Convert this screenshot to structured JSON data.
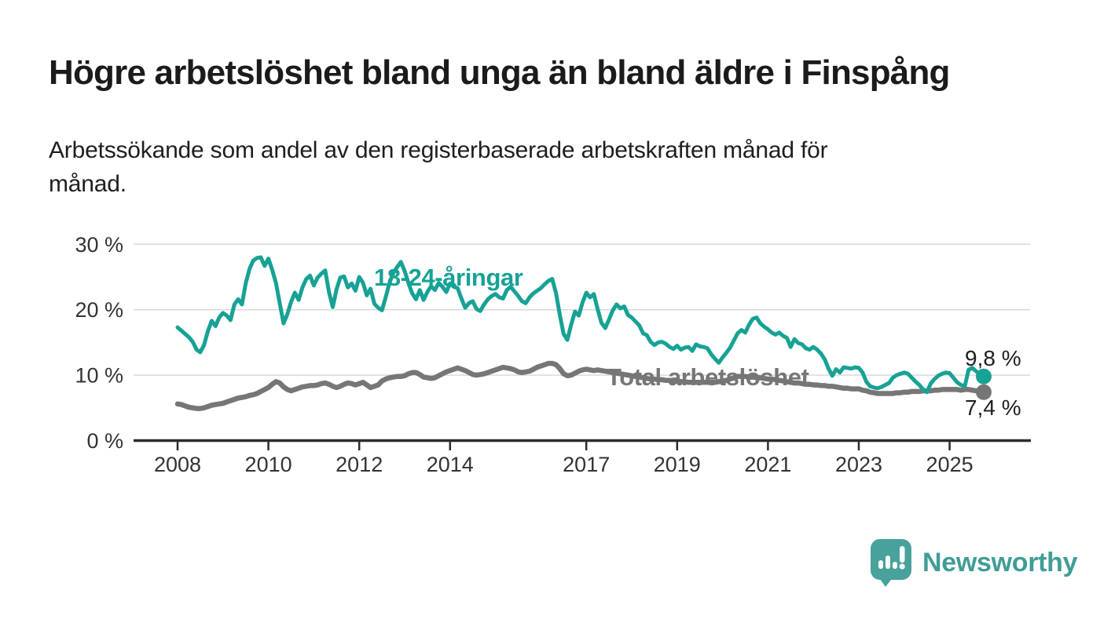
{
  "page": {
    "title": "Högre arbetslöshet bland unga än bland äldre i Finspång",
    "subtitle_lines": [
      "Arbetssökande som andel av den registerbaserade arbetskraften månad för",
      "månad."
    ]
  },
  "branding": {
    "name": "Newsworthy",
    "bubble_color": "#49a19b",
    "text_color": "#3f9d96",
    "icon": "bar-chart-speech-bubble"
  },
  "chart_data": {
    "type": "line",
    "title": "Högre arbetslöshet bland unga än bland äldre i Finspång",
    "subtitle": "Arbetssökande som andel av den registerbaserade arbetskraften månad för månad.",
    "x_unit": "month",
    "x_start": "2008-01",
    "x_end": "2025-10",
    "ylim": [
      0,
      32
    ],
    "grid": "horizontal",
    "legend_position": "inline-labels",
    "x_ticks": [
      2008,
      2010,
      2012,
      2014,
      2017,
      2019,
      2021,
      2023,
      2025
    ],
    "y_ticks": [
      {
        "value": 0,
        "label": "0 %"
      },
      {
        "value": 10,
        "label": "10 %"
      },
      {
        "value": 20,
        "label": "20 %"
      },
      {
        "value": 30,
        "label": "30 %"
      }
    ],
    "colors": {
      "grid": "#d9d9d9",
      "axis": "#2d2d2d",
      "tick_text": "#333333"
    },
    "series": [
      {
        "name": "18-24-åringar",
        "color": "#17a295",
        "end_label": "9,8 %",
        "end_value": 9.8,
        "values": [
          17.3,
          16.8,
          16.3,
          15.8,
          15.1,
          13.9,
          13.5,
          14.6,
          16.7,
          18.3,
          17.5,
          18.8,
          19.5,
          19.1,
          18.4,
          20.8,
          21.6,
          20.8,
          24.0,
          26.2,
          27.5,
          27.9,
          28.0,
          26.7,
          27.8,
          26.1,
          24.1,
          21.0,
          17.9,
          19.3,
          21.2,
          22.6,
          21.5,
          23.4,
          24.7,
          25.2,
          23.7,
          24.9,
          25.5,
          26.0,
          22.7,
          20.4,
          23.1,
          24.9,
          25.1,
          23.4,
          24.0,
          22.9,
          25.0,
          24.1,
          22.2,
          23.2,
          20.9,
          20.3,
          19.9,
          21.9,
          24.1,
          25.6,
          26.5,
          27.3,
          25.9,
          24.1,
          22.5,
          21.6,
          23.0,
          21.5,
          22.7,
          23.6,
          23.0,
          24.1,
          23.5,
          22.7,
          24.0,
          23.5,
          23.3,
          21.7,
          20.3,
          21.0,
          21.3,
          20.1,
          19.8,
          20.8,
          21.6,
          22.1,
          22.4,
          21.9,
          21.7,
          23.0,
          23.5,
          22.8,
          22.1,
          21.3,
          21.0,
          21.9,
          22.5,
          22.9,
          23.3,
          23.9,
          24.4,
          24.7,
          22.5,
          19.2,
          16.3,
          15.4,
          17.7,
          19.7,
          19.1,
          21.1,
          22.6,
          21.9,
          22.4,
          20.1,
          18.0,
          17.2,
          18.5,
          19.9,
          20.8,
          20.2,
          20.5,
          19.2,
          18.8,
          18.2,
          17.6,
          16.4,
          16.1,
          15.1,
          14.6,
          15.0,
          15.1,
          14.8,
          14.3,
          14.0,
          14.5,
          13.9,
          14.2,
          14.3,
          13.7,
          14.7,
          14.4,
          14.3,
          14.1,
          13.2,
          12.5,
          11.9,
          12.7,
          13.4,
          14.2,
          15.3,
          16.4,
          16.9,
          16.5,
          17.7,
          18.6,
          18.8,
          17.9,
          17.4,
          17.0,
          16.5,
          16.2,
          16.5,
          16.0,
          15.7,
          14.3,
          15.5,
          14.9,
          14.7,
          14.1,
          13.9,
          14.3,
          13.9,
          13.3,
          12.4,
          11.0,
          9.9,
          10.9,
          10.4,
          11.2,
          11.1,
          11.0,
          11.2,
          11.1,
          10.4,
          9.0,
          8.3,
          8.1,
          8.0,
          8.2,
          8.5,
          8.8,
          9.6,
          10.0,
          10.2,
          10.4,
          10.2,
          9.6,
          9.0,
          8.5,
          7.8,
          7.4,
          8.7,
          9.4,
          9.9,
          10.2,
          10.4,
          10.3,
          9.6,
          8.9,
          8.5,
          8.3,
          10.8,
          11.1,
          10.6,
          10.1,
          9.8
        ]
      },
      {
        "name": "Total arbetslöshet",
        "color": "#767676",
        "end_label": "7,4 %",
        "end_value": 7.4,
        "values": [
          5.6,
          5.5,
          5.3,
          5.1,
          5.0,
          4.9,
          4.9,
          5.0,
          5.2,
          5.4,
          5.5,
          5.6,
          5.7,
          5.9,
          6.1,
          6.3,
          6.5,
          6.6,
          6.7,
          6.9,
          7.0,
          7.2,
          7.5,
          7.8,
          8.1,
          8.6,
          9.0,
          8.8,
          8.2,
          7.8,
          7.6,
          7.8,
          8.0,
          8.2,
          8.3,
          8.4,
          8.4,
          8.5,
          8.7,
          8.8,
          8.6,
          8.3,
          8.1,
          8.3,
          8.6,
          8.8,
          8.7,
          8.5,
          8.7,
          8.9,
          8.5,
          8.1,
          8.3,
          8.5,
          9.1,
          9.4,
          9.6,
          9.7,
          9.8,
          9.8,
          9.9,
          10.2,
          10.4,
          10.4,
          10.1,
          9.7,
          9.6,
          9.5,
          9.6,
          9.9,
          10.2,
          10.5,
          10.7,
          10.9,
          11.1,
          10.9,
          10.7,
          10.4,
          10.1,
          10.0,
          10.1,
          10.2,
          10.4,
          10.6,
          10.8,
          11.0,
          11.2,
          11.1,
          11.0,
          10.8,
          10.5,
          10.4,
          10.5,
          10.6,
          10.9,
          11.2,
          11.4,
          11.6,
          11.8,
          11.8,
          11.6,
          11.0,
          10.2,
          9.9,
          10.0,
          10.3,
          10.6,
          10.8,
          10.9,
          10.8,
          10.7,
          10.8,
          10.7,
          10.6,
          10.5,
          10.4,
          10.3,
          10.2,
          10.1,
          10.0,
          9.9,
          9.8,
          9.7,
          9.6,
          9.5,
          9.4,
          9.4,
          9.3,
          9.3,
          9.2,
          9.2,
          9.1,
          9.1,
          9.0,
          9.0,
          8.9,
          8.9,
          8.9,
          8.9,
          8.9,
          8.9,
          8.9,
          8.9,
          9.0,
          9.1,
          9.2,
          9.4,
          9.6,
          9.8,
          9.8,
          9.8,
          9.7,
          9.7,
          9.6,
          9.6,
          9.5,
          9.4,
          9.4,
          9.3,
          9.2,
          9.1,
          9.0,
          8.9,
          8.8,
          8.8,
          8.7,
          8.6,
          8.6,
          8.5,
          8.5,
          8.4,
          8.4,
          8.3,
          8.3,
          8.2,
          8.1,
          8.0,
          8.0,
          7.9,
          7.9,
          7.9,
          7.7,
          7.6,
          7.4,
          7.3,
          7.2,
          7.2,
          7.2,
          7.2,
          7.2,
          7.3,
          7.3,
          7.4,
          7.4,
          7.5,
          7.5,
          7.5,
          7.6,
          7.6,
          7.6,
          7.7,
          7.7,
          7.8,
          7.8,
          7.8,
          7.8,
          7.8,
          7.7,
          7.8,
          7.8,
          7.7,
          7.6,
          7.5,
          7.4
        ]
      }
    ]
  }
}
